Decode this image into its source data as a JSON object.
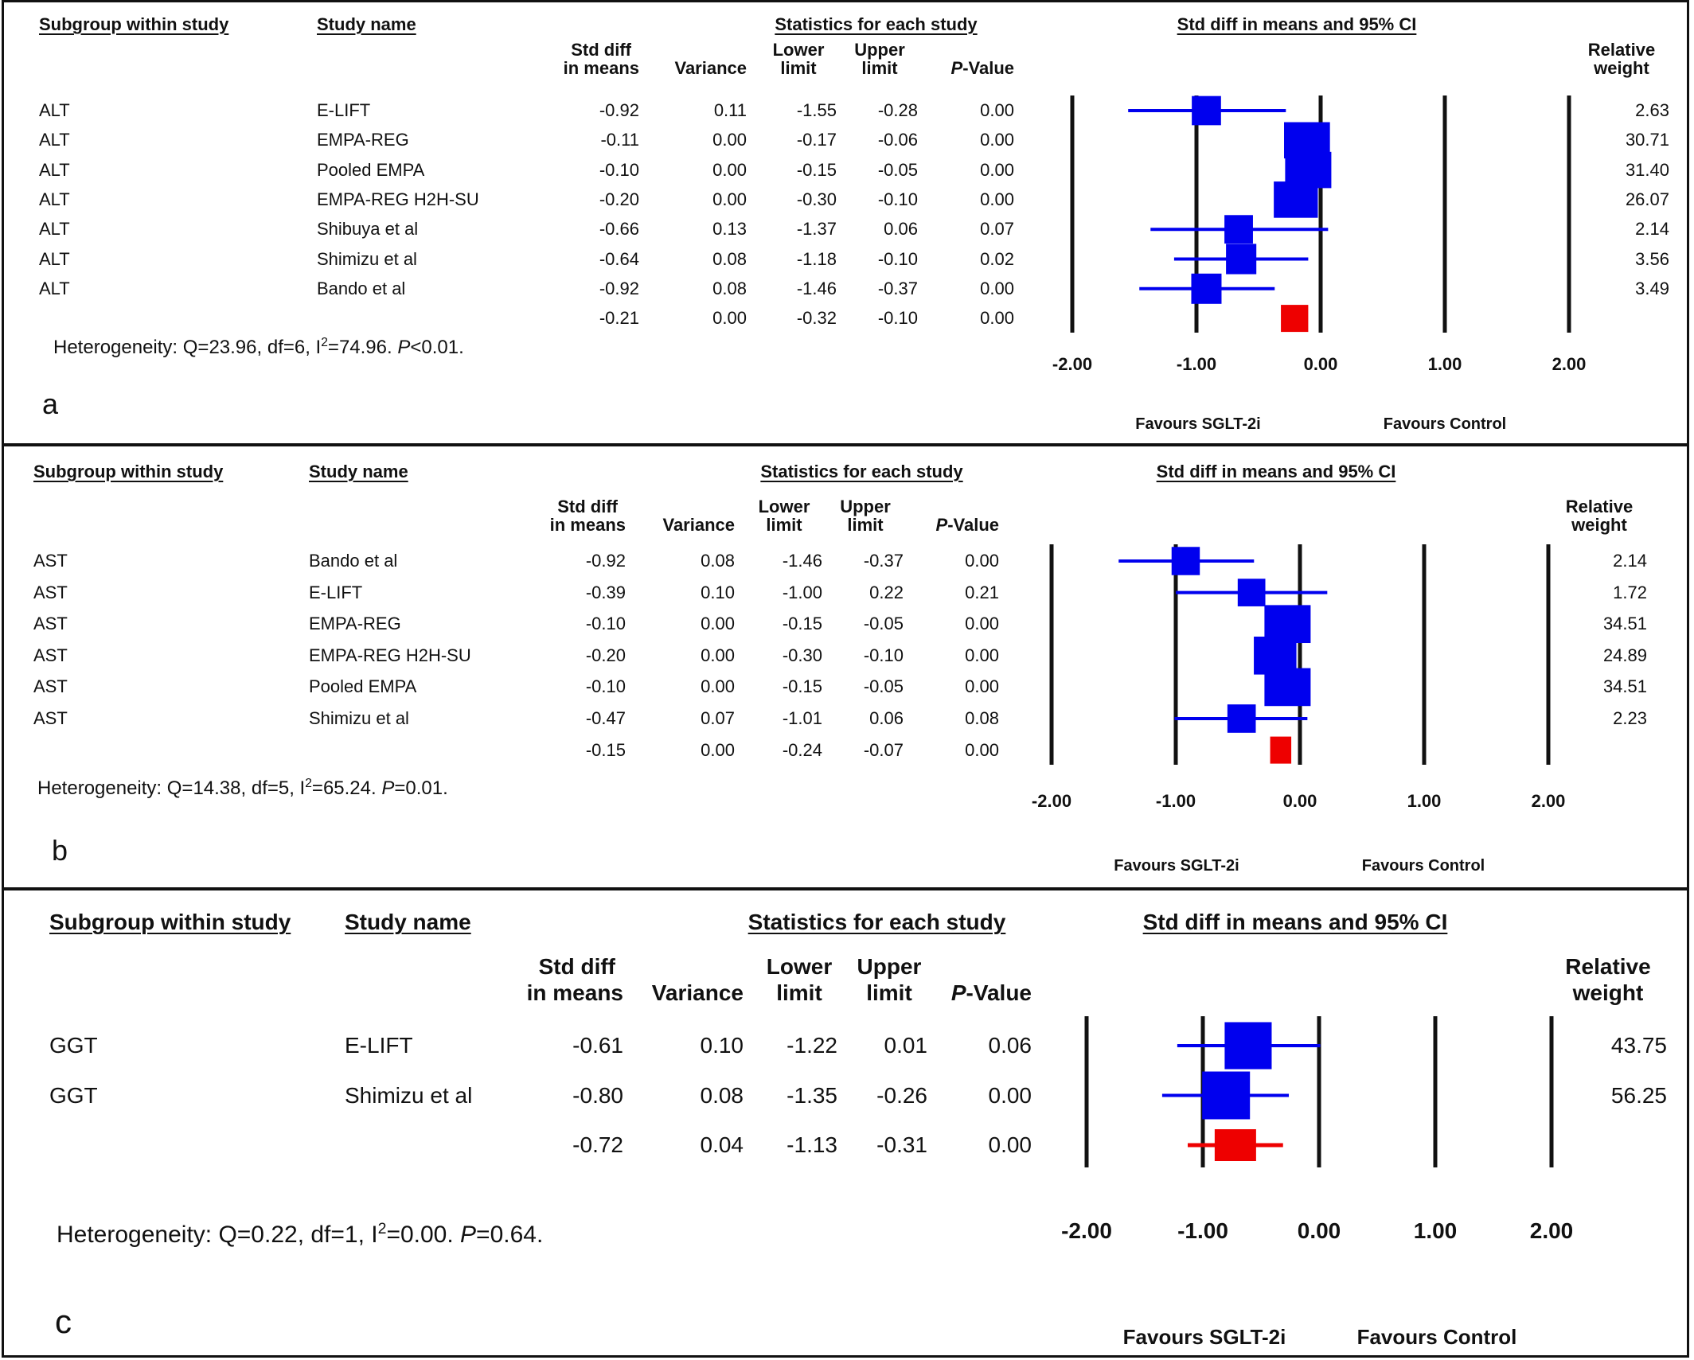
{
  "headers": {
    "subgroup": "Subgroup within study",
    "study": "Study name",
    "stats": "Statistics for each study",
    "ci": "Std diff in means and 95% CI",
    "smd1": "Std diff",
    "smd2": "in means",
    "variance": "Variance",
    "lower1": "Lower",
    "lower2": "limit",
    "upper1": "Upper",
    "upper2": "limit",
    "p_italic": "P",
    "p_rest": "-Value",
    "rw1": "Relative",
    "rw2": "weight"
  },
  "favours": {
    "left": "Favours SGLT-2i",
    "right": "Favours Control"
  },
  "colors": {
    "study": "#0000ee",
    "summary": "#ee0000"
  },
  "chart_data": [
    {
      "type": "forest",
      "panel_label": "a",
      "x_ticks": [
        "-2.00",
        "-1.00",
        "0.00",
        "1.00",
        "2.00"
      ],
      "xlim": [
        -2,
        2
      ],
      "rows": [
        {
          "subgroup": "ALT",
          "study": "E-LIFT",
          "smd": "-0.92",
          "variance": "0.11",
          "lower": "-1.55",
          "upper": "-0.28",
          "p": "0.00",
          "weight": "2.63"
        },
        {
          "subgroup": "ALT",
          "study": "EMPA-REG",
          "smd": "-0.11",
          "variance": "0.00",
          "lower": "-0.17",
          "upper": "-0.06",
          "p": "0.00",
          "weight": "30.71"
        },
        {
          "subgroup": "ALT",
          "study": "Pooled EMPA",
          "smd": "-0.10",
          "variance": "0.00",
          "lower": "-0.15",
          "upper": "-0.05",
          "p": "0.00",
          "weight": "31.40"
        },
        {
          "subgroup": "ALT",
          "study": "EMPA-REG H2H-SU",
          "smd": "-0.20",
          "variance": "0.00",
          "lower": "-0.30",
          "upper": "-0.10",
          "p": "0.00",
          "weight": "26.07"
        },
        {
          "subgroup": "ALT",
          "study": "Shibuya et al",
          "smd": "-0.66",
          "variance": "0.13",
          "lower": "-1.37",
          "upper": "0.06",
          "p": "0.07",
          "weight": "2.14"
        },
        {
          "subgroup": "ALT",
          "study": "Shimizu et al",
          "smd": "-0.64",
          "variance": "0.08",
          "lower": "-1.18",
          "upper": "-0.10",
          "p": "0.02",
          "weight": "3.56"
        },
        {
          "subgroup": "ALT",
          "study": "Bando et al",
          "smd": "-0.92",
          "variance": "0.08",
          "lower": "-1.46",
          "upper": "-0.37",
          "p": "0.00",
          "weight": "3.49"
        }
      ],
      "summary": {
        "smd": "-0.21",
        "variance": "0.00",
        "lower": "-0.32",
        "upper": "-0.10",
        "p": "0.00"
      },
      "heterogeneity": {
        "pre": "Heterogeneity: Q=23.96, df=6, I",
        "sup": "2",
        "mid": "=74.96. ",
        "p": "P",
        "post": "<0.01."
      }
    },
    {
      "type": "forest",
      "panel_label": "b",
      "x_ticks": [
        "-2.00",
        "-1.00",
        "0.00",
        "1.00",
        "2.00"
      ],
      "xlim": [
        -2,
        2
      ],
      "rows": [
        {
          "subgroup": "AST",
          "study": "Bando et al",
          "smd": "-0.92",
          "variance": "0.08",
          "lower": "-1.46",
          "upper": "-0.37",
          "p": "0.00",
          "weight": "2.14"
        },
        {
          "subgroup": "AST",
          "study": "E-LIFT",
          "smd": "-0.39",
          "variance": "0.10",
          "lower": "-1.00",
          "upper": "0.22",
          "p": "0.21",
          "weight": "1.72"
        },
        {
          "subgroup": "AST",
          "study": "EMPA-REG",
          "smd": "-0.10",
          "variance": "0.00",
          "lower": "-0.15",
          "upper": "-0.05",
          "p": "0.00",
          "weight": "34.51"
        },
        {
          "subgroup": "AST",
          "study": "EMPA-REG H2H-SU",
          "smd": "-0.20",
          "variance": "0.00",
          "lower": "-0.30",
          "upper": "-0.10",
          "p": "0.00",
          "weight": "24.89"
        },
        {
          "subgroup": "AST",
          "study": "Pooled EMPA",
          "smd": "-0.10",
          "variance": "0.00",
          "lower": "-0.15",
          "upper": "-0.05",
          "p": "0.00",
          "weight": "34.51"
        },
        {
          "subgroup": "AST",
          "study": "Shimizu et al",
          "smd": "-0.47",
          "variance": "0.07",
          "lower": "-1.01",
          "upper": "0.06",
          "p": "0.08",
          "weight": "2.23"
        }
      ],
      "summary": {
        "smd": "-0.15",
        "variance": "0.00",
        "lower": "-0.24",
        "upper": "-0.07",
        "p": "0.00"
      },
      "heterogeneity": {
        "pre": "Heterogeneity: Q=14.38, df=5, I",
        "sup": "2",
        "mid": "=65.24. ",
        "p": "P",
        "post": "=0.01."
      }
    },
    {
      "type": "forest",
      "panel_label": "c",
      "x_ticks": [
        "-2.00",
        "-1.00",
        "0.00",
        "1.00",
        "2.00"
      ],
      "xlim": [
        -2,
        2
      ],
      "rows": [
        {
          "subgroup": "GGT",
          "study": "E-LIFT",
          "smd": "-0.61",
          "variance": "0.10",
          "lower": "-1.22",
          "upper": "0.01",
          "p": "0.06",
          "weight": "43.75"
        },
        {
          "subgroup": "GGT",
          "study": "Shimizu et al",
          "smd": "-0.80",
          "variance": "0.08",
          "lower": "-1.35",
          "upper": "-0.26",
          "p": "0.00",
          "weight": "56.25"
        }
      ],
      "summary": {
        "smd": "-0.72",
        "variance": "0.04",
        "lower": "-1.13",
        "upper": "-0.31",
        "p": "0.00"
      },
      "heterogeneity": {
        "pre": "Heterogeneity: Q=0.22, df=1, I",
        "sup": "2",
        "mid": "=0.00. ",
        "p": "P",
        "post": "=0.64."
      }
    }
  ]
}
